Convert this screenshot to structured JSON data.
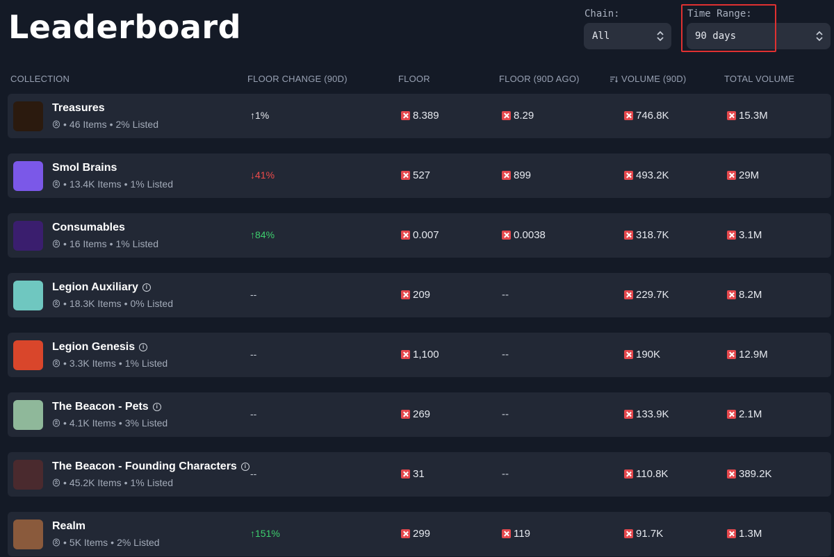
{
  "page": {
    "title": "Leaderboard"
  },
  "filters": {
    "chain_label": "Chain:",
    "chain_value": "All",
    "time_range_label": "Time Range:",
    "time_range_value": "90 days"
  },
  "table": {
    "headers": {
      "collection": "COLLECTION",
      "floor_change": "FLOOR CHANGE (90D)",
      "floor": "FLOOR",
      "floor_ago": "FLOOR (90D AGO)",
      "volume": "VOLUME (90D)",
      "total_volume": "TOTAL VOLUME"
    },
    "rows": [
      {
        "name": "Treasures",
        "info": false,
        "items": "46 Items",
        "listed": "2% Listed",
        "change": "↑1%",
        "change_dir": "neutral",
        "floor": "8.389",
        "floor_ago": "8.29",
        "volume": "746.8K",
        "total_volume": "15.3M",
        "thumb_color": "#2b1a0e"
      },
      {
        "name": "Smol Brains",
        "info": false,
        "items": "13.4K Items",
        "listed": "1% Listed",
        "change": "↓41%",
        "change_dir": "down",
        "floor": "527",
        "floor_ago": "899",
        "volume": "493.2K",
        "total_volume": "29M",
        "thumb_color": "#7b58e8"
      },
      {
        "name": "Consumables",
        "info": false,
        "items": "16 Items",
        "listed": "1% Listed",
        "change": "↑84%",
        "change_dir": "up",
        "floor": "0.007",
        "floor_ago": "0.0038",
        "volume": "318.7K",
        "total_volume": "3.1M",
        "thumb_color": "#3a1e6e"
      },
      {
        "name": "Legion Auxiliary",
        "info": true,
        "items": "18.3K Items",
        "listed": "0% Listed",
        "change": "--",
        "change_dir": "dash",
        "floor": "209",
        "floor_ago": "--",
        "volume": "229.7K",
        "total_volume": "8.2M",
        "thumb_color": "#6fc7c0"
      },
      {
        "name": "Legion Genesis",
        "info": true,
        "items": "3.3K Items",
        "listed": "1% Listed",
        "change": "--",
        "change_dir": "dash",
        "floor": "1,100",
        "floor_ago": "--",
        "volume": "190K",
        "total_volume": "12.9M",
        "thumb_color": "#d9462b"
      },
      {
        "name": "The Beacon - Pets",
        "info": true,
        "items": "4.1K Items",
        "listed": "3% Listed",
        "change": "--",
        "change_dir": "dash",
        "floor": "269",
        "floor_ago": "--",
        "volume": "133.9K",
        "total_volume": "2.1M",
        "thumb_color": "#8fb89a"
      },
      {
        "name": "The Beacon - Founding Characters",
        "info": true,
        "items": "45.2K Items",
        "listed": "1% Listed",
        "change": "--",
        "change_dir": "dash",
        "floor": "31",
        "floor_ago": "--",
        "volume": "110.8K",
        "total_volume": "389.2K",
        "thumb_color": "#4a2a2e"
      },
      {
        "name": "Realm",
        "info": false,
        "items": "5K Items",
        "listed": "2% Listed",
        "change": "↑151%",
        "change_dir": "up",
        "floor": "299",
        "floor_ago": "119",
        "volume": "91.7K",
        "total_volume": "1.3M",
        "thumb_color": "#8a5a3c"
      }
    ]
  },
  "colors": {
    "background": "#141a26",
    "row_bg": "#222835",
    "up": "#3ecf6e",
    "down": "#ef4b4b",
    "magic_icon": "#e5484d",
    "highlight": "#e03131"
  }
}
